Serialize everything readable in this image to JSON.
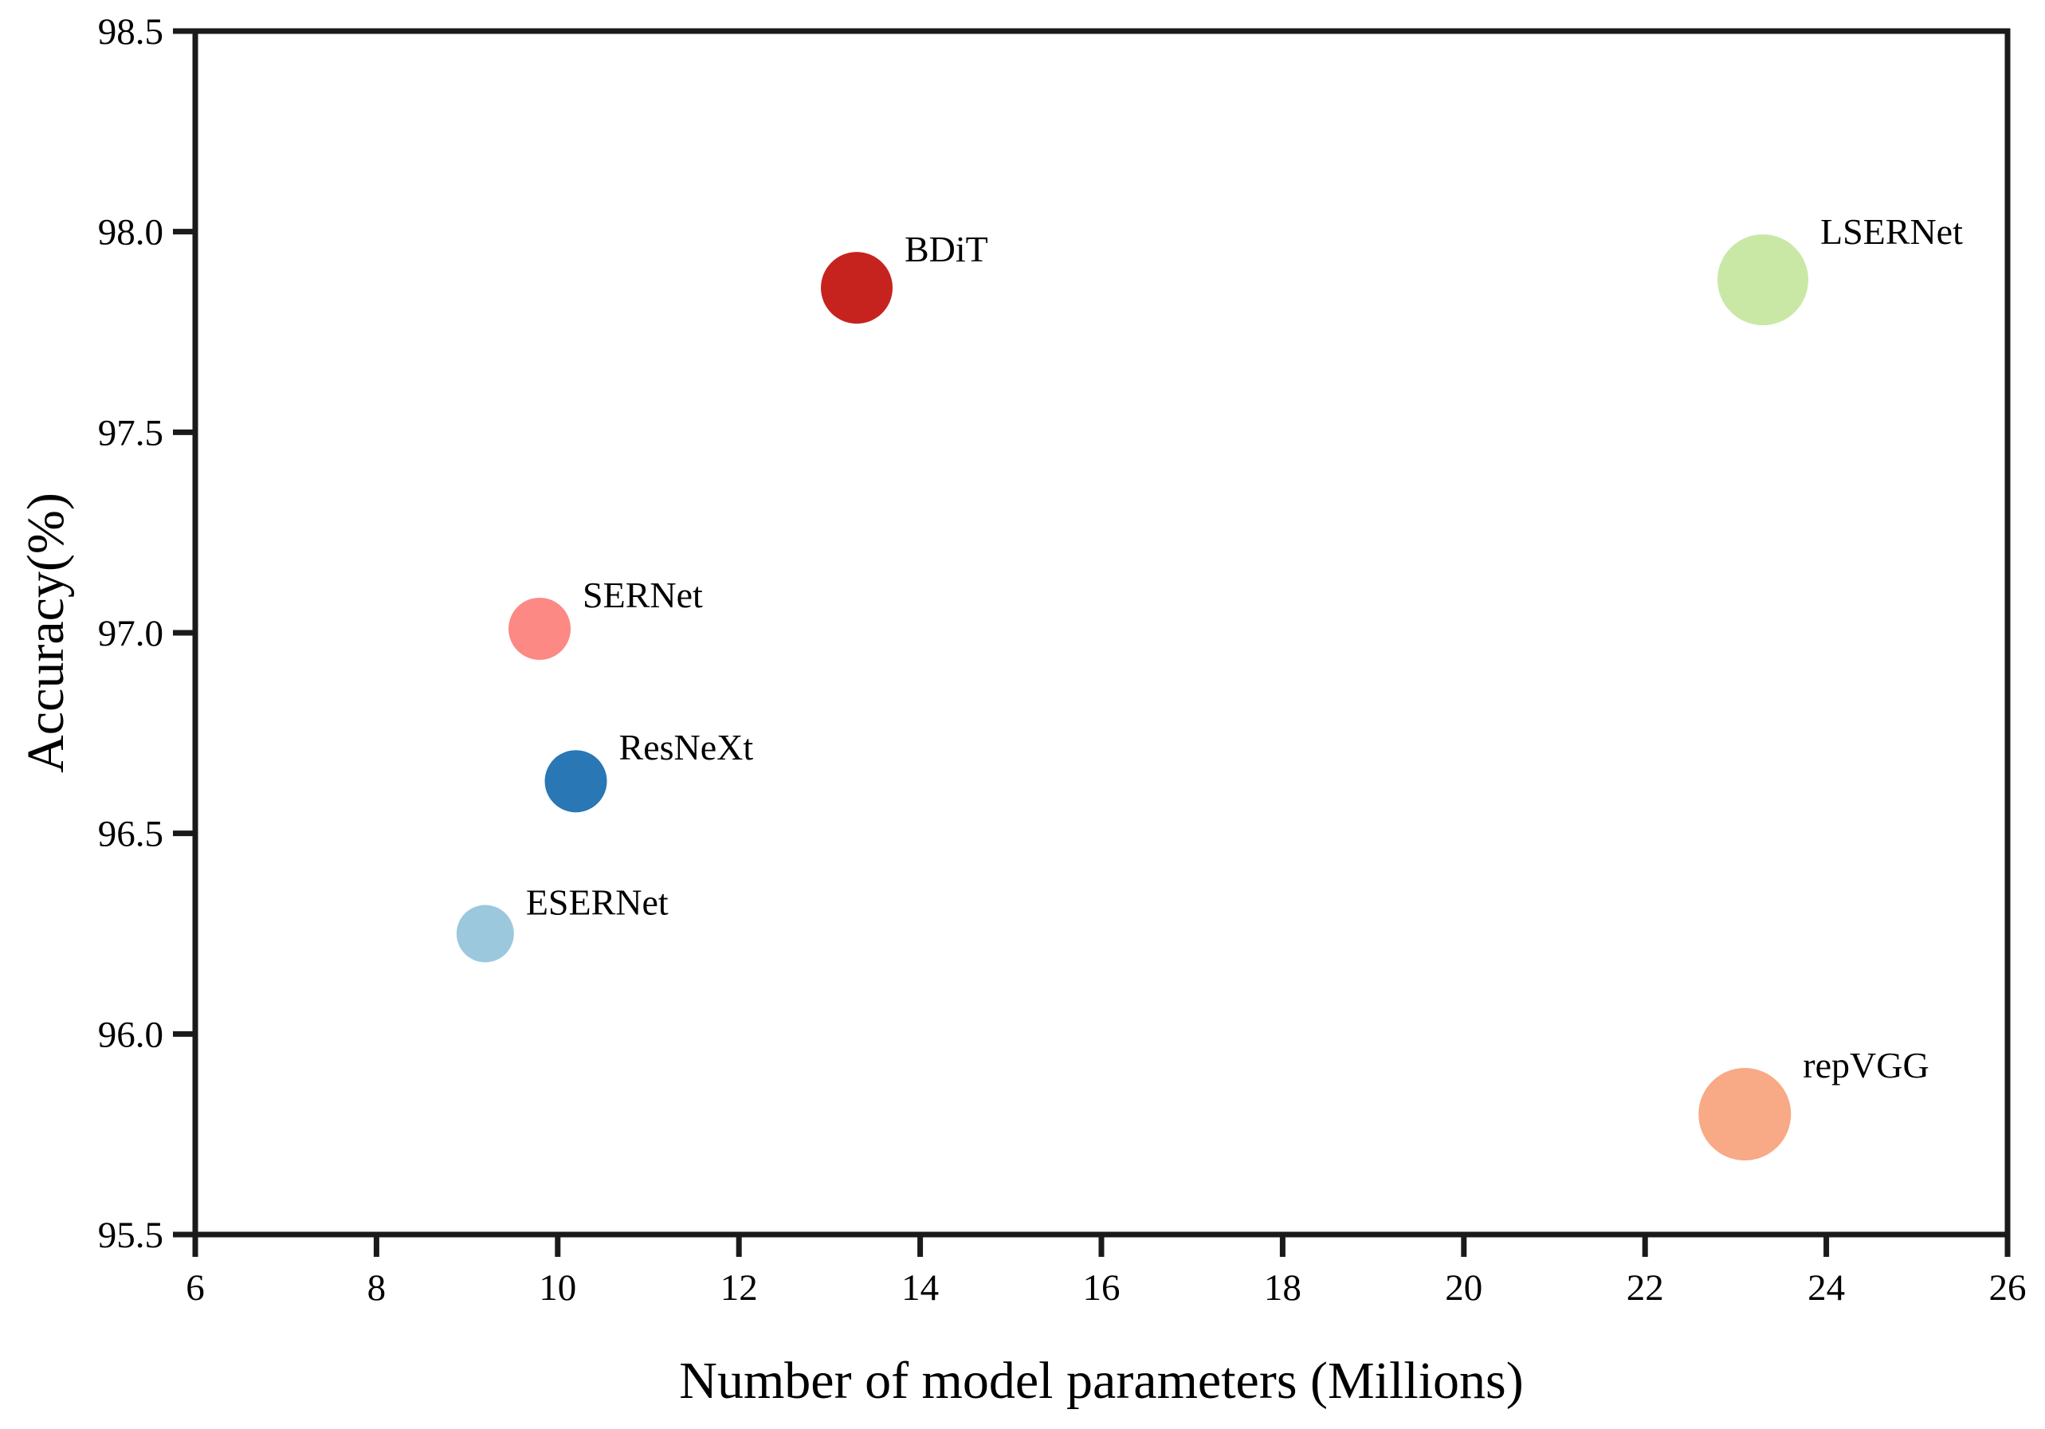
{
  "figure": {
    "background": "#ffffff",
    "axis_color": "#1a1a1a",
    "text_color": "#000000"
  },
  "chart_data": {
    "type": "scatter",
    "subtype": "bubble",
    "title": "",
    "xlabel": "Number of model parameters (Millions)",
    "ylabel": "Accuracy(%)",
    "xlim": [
      6,
      26
    ],
    "ylim": [
      95.5,
      98.5
    ],
    "grid": false,
    "legend_position": "none",
    "xticks": [
      {
        "value": 6,
        "label": "6"
      },
      {
        "value": 8,
        "label": "8"
      },
      {
        "value": 10,
        "label": "10"
      },
      {
        "value": 12,
        "label": "12"
      },
      {
        "value": 14,
        "label": "14"
      },
      {
        "value": 16,
        "label": "16"
      },
      {
        "value": 18,
        "label": "18"
      },
      {
        "value": 20,
        "label": "20"
      },
      {
        "value": 22,
        "label": "22"
      },
      {
        "value": 24,
        "label": "24"
      },
      {
        "value": 26,
        "label": "26"
      }
    ],
    "yticks": [
      {
        "value": 95.5,
        "label": "95.5"
      },
      {
        "value": 96.0,
        "label": "96.0"
      },
      {
        "value": 96.5,
        "label": "96.5"
      },
      {
        "value": 97.0,
        "label": "97.0"
      },
      {
        "value": 97.5,
        "label": "97.5"
      },
      {
        "value": 98.0,
        "label": "98.0"
      },
      {
        "value": 98.5,
        "label": "98.5"
      }
    ],
    "points": [
      {
        "label": "BDiT",
        "x": 13.3,
        "y": 97.86,
        "radius_px": 45,
        "color": "#c6231f"
      },
      {
        "label": "LSERNet",
        "x": 23.3,
        "y": 97.88,
        "radius_px": 57,
        "color": "#c9e8a6"
      },
      {
        "label": "SERNet",
        "x": 9.8,
        "y": 97.01,
        "radius_px": 39,
        "color": "#fc8984"
      },
      {
        "label": "ResNeXt",
        "x": 10.2,
        "y": 96.63,
        "radius_px": 39,
        "color": "#2977b4"
      },
      {
        "label": "ESERNet",
        "x": 9.2,
        "y": 96.25,
        "radius_px": 36,
        "color": "#9cc8de"
      },
      {
        "label": "repVGG",
        "x": 23.1,
        "y": 95.8,
        "radius_px": 58,
        "color": "#f8a985"
      }
    ]
  }
}
